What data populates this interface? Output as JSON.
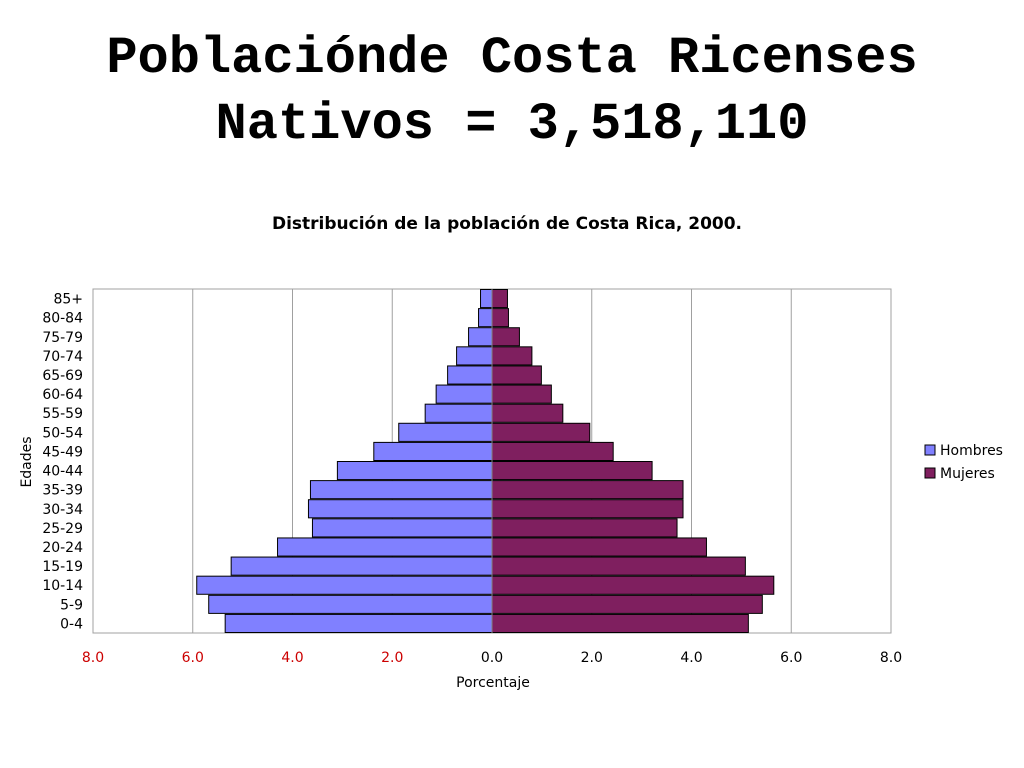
{
  "slide": {
    "title_line1": "Poblaciónde Costa Ricenses",
    "title_line2": "Nativos = 3,518,110"
  },
  "chart_data": {
    "type": "bar",
    "orientation": "horizontal-population-pyramid",
    "title": "Distribución de la población de Costa Rica, 2000.",
    "xlabel": "Porcentaje",
    "ylabel": "Edades",
    "categories": [
      "0-4",
      "5-9",
      "10-14",
      "15-19",
      "20-24",
      "25-29",
      "30-34",
      "35-39",
      "40-44",
      "45-49",
      "50-54",
      "55-59",
      "60-64",
      "65-69",
      "70-74",
      "75-79",
      "80-84",
      "85+"
    ],
    "series": [
      {
        "name": "Hombres",
        "color": "#8080ff",
        "values": [
          5.35,
          5.68,
          5.92,
          5.23,
          4.3,
          3.6,
          3.68,
          3.64,
          3.1,
          2.37,
          1.87,
          1.34,
          1.12,
          0.89,
          0.71,
          0.47,
          0.27,
          0.23
        ]
      },
      {
        "name": "Mujeres",
        "color": "#7f1f5f",
        "values": [
          5.14,
          5.42,
          5.65,
          5.08,
          4.3,
          3.71,
          3.83,
          3.83,
          3.21,
          2.43,
          1.96,
          1.42,
          1.19,
          0.99,
          0.8,
          0.55,
          0.33,
          0.31
        ]
      }
    ],
    "xlim": [
      -8,
      8
    ],
    "xticks": [
      "8.0",
      "6.0",
      "4.0",
      "2.0",
      "0.0",
      "2.0",
      "4.0",
      "6.0",
      "8.0"
    ],
    "grid": true,
    "legend_position": "right"
  }
}
